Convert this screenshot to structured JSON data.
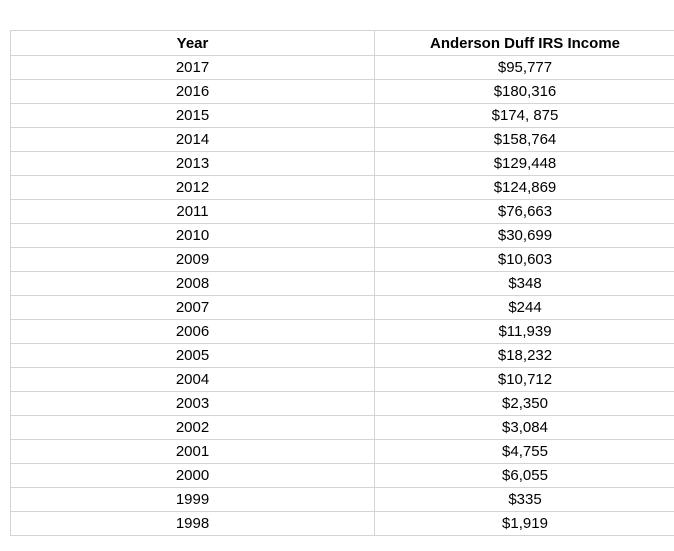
{
  "table": {
    "header": [
      "Year",
      "Anderson Duff IRS Income"
    ],
    "rows": [
      [
        "2017",
        "$95,777"
      ],
      [
        "2016",
        "$180,316"
      ],
      [
        "2015",
        "$174, 875"
      ],
      [
        "2014",
        "$158,764"
      ],
      [
        "2013",
        "$129,448"
      ],
      [
        "2012",
        "$124,869"
      ],
      [
        "2011",
        "$76,663"
      ],
      [
        "2010",
        "$30,699"
      ],
      [
        "2009",
        "$10,603"
      ],
      [
        "2008",
        "$348"
      ],
      [
        "2007",
        "$244"
      ],
      [
        "2006",
        "$11,939"
      ],
      [
        "2005",
        "$18,232"
      ],
      [
        "2004",
        "$10,712"
      ],
      [
        "2003",
        "$2,350"
      ],
      [
        "2002",
        "$3,084"
      ],
      [
        "2001",
        "$4,755"
      ],
      [
        "2000",
        "$6,055"
      ],
      [
        "1999",
        "$335"
      ],
      [
        "1998",
        "$1,919"
      ]
    ]
  }
}
